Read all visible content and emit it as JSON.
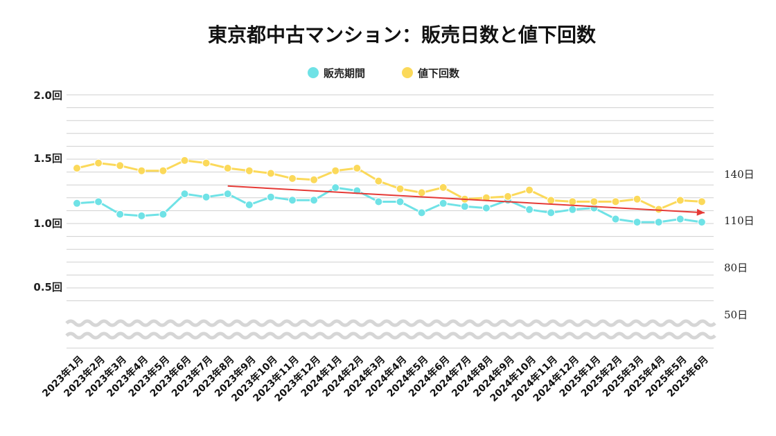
{
  "colors": {
    "days": "#6fe2e6",
    "reductions": "#fbd95a",
    "trend": "#e53935",
    "grid": "#cfcfcf"
  },
  "chart_data": {
    "type": "line",
    "title": "東京都中古マンション：販売日数と値下回数",
    "categories": [
      "2023年1月",
      "2023年2月",
      "2023年3月",
      "2023年4月",
      "2023年5月",
      "2023年6月",
      "2023年7月",
      "2023年8月",
      "2023年9月",
      "2023年10月",
      "2023年11月",
      "2023年12月",
      "2024年1月",
      "2024年2月",
      "2024年3月",
      "2024年4月",
      "2024年5月",
      "2024年6月",
      "2024年7月",
      "2024年8月",
      "2024年9月",
      "2024年10月",
      "2024年11月",
      "2024年12月",
      "2025年1月",
      "2025年2月",
      "2025年3月",
      "2025年4月",
      "2025年5月",
      "2025年6月"
    ],
    "series": [
      {
        "name": "販売期間",
        "axis": "right",
        "color": "#6fe2e6",
        "values": [
          122,
          123,
          115,
          114,
          115,
          128,
          126,
          128,
          121,
          126,
          124,
          124,
          132,
          130,
          123,
          123,
          116,
          122,
          120,
          119,
          124,
          118,
          116,
          118,
          119,
          112,
          110,
          110,
          112,
          110
        ]
      },
      {
        "name": "値下回数",
        "axis": "left",
        "color": "#fbd95a",
        "values": [
          1.43,
          1.47,
          1.45,
          1.41,
          1.41,
          1.49,
          1.47,
          1.43,
          1.41,
          1.39,
          1.35,
          1.34,
          1.41,
          1.43,
          1.33,
          1.27,
          1.24,
          1.28,
          1.19,
          1.2,
          1.21,
          1.26,
          1.18,
          1.17,
          1.17,
          1.17,
          1.19,
          1.11,
          1.18,
          1.17
        ]
      }
    ],
    "trendline": {
      "axis": "right",
      "from_category": "2023年8月",
      "from_value": 133,
      "to_category": "2025年6月",
      "to_value": 116
    },
    "y_left": {
      "ticks": [
        "2.0回",
        "1.5回",
        "1.0回",
        "0.5回"
      ],
      "tick_values": [
        2.0,
        1.5,
        1.0,
        0.5
      ],
      "ylim": [
        0.22,
        2.0
      ]
    },
    "y_right": {
      "ticks": [
        "140日",
        "110日",
        "80日",
        "50日"
      ],
      "tick_values": [
        140,
        110,
        80,
        50
      ],
      "ylim": [
        39,
        200
      ]
    },
    "axis_break": true,
    "grid": true,
    "legend_position": "top-center"
  }
}
